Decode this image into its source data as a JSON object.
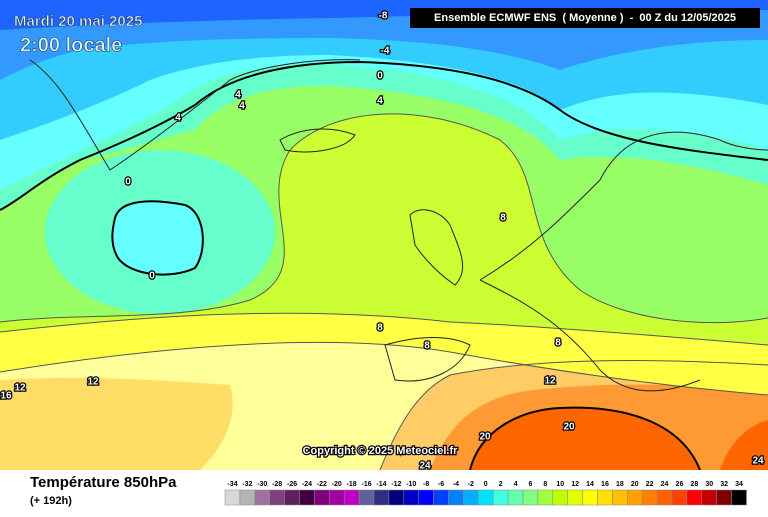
{
  "header": {
    "date": "Mardi 20 mai 2025",
    "time": "2:00 locale",
    "model": "Ensemble ECMWF ENS  ( Moyenne )  -  00 Z du 12/05/2025"
  },
  "copyright": "Copyright © 2025 Meteociel.fr",
  "footer": {
    "title": "Température 850hPa",
    "lead": "(+ 192h)"
  },
  "contour_labels": [
    -8,
    -4,
    0,
    4,
    4,
    4,
    4,
    0,
    0,
    8,
    8,
    8,
    8,
    12,
    12,
    12,
    16,
    20,
    20,
    24,
    24
  ],
  "scale": {
    "values": [
      -34,
      -32,
      -30,
      -28,
      -26,
      -24,
      -22,
      -20,
      -18,
      -16,
      -14,
      -12,
      -10,
      -8,
      -6,
      -4,
      -2,
      0,
      2,
      4,
      6,
      8,
      10,
      12,
      14,
      16,
      18,
      20,
      22,
      24,
      26,
      28,
      30,
      32,
      34
    ],
    "colors": [
      "#d8d8d8",
      "#b4b4b4",
      "#a070a0",
      "#804080",
      "#602060",
      "#400040",
      "#800080",
      "#a000a0",
      "#c000c0",
      "#6060a0",
      "#303080",
      "#000080",
      "#0000c0",
      "#0000ff",
      "#0040ff",
      "#0080ff",
      "#00b0ff",
      "#00e0ff",
      "#40ffe0",
      "#60ffb0",
      "#80ff80",
      "#a0ff40",
      "#c0ff00",
      "#e0ff00",
      "#ffff00",
      "#ffe000",
      "#ffc000",
      "#ffa000",
      "#ff8000",
      "#ff6000",
      "#ff4000",
      "#ff0000",
      "#c00000",
      "#800000",
      "#000000"
    ]
  }
}
